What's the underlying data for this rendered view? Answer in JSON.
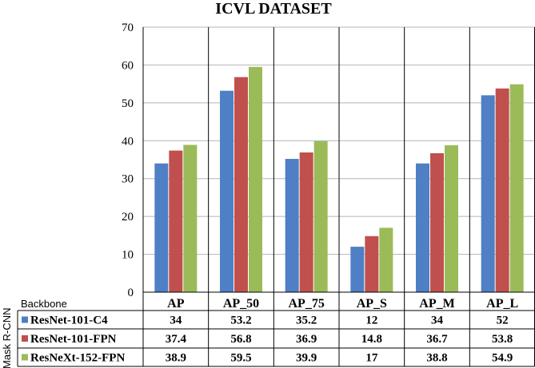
{
  "chart_data": {
    "type": "bar",
    "title": "ICVL DATASET",
    "categories": [
      "AP",
      "AP_50",
      "AP_75",
      "AP_S",
      "AP_M",
      "AP_L"
    ],
    "series": [
      {
        "name": "ResNet-101-C4",
        "color": "#4F7FC4",
        "values": [
          34,
          53.2,
          35.2,
          12,
          34,
          52
        ]
      },
      {
        "name": "ResNet-101-FPN",
        "color": "#C0504D",
        "values": [
          37.4,
          56.8,
          36.9,
          14.8,
          36.7,
          53.8
        ]
      },
      {
        "name": "ResNeXt-152-FPN",
        "color": "#9BBB59",
        "values": [
          38.9,
          59.5,
          39.9,
          17,
          38.8,
          54.9
        ]
      }
    ],
    "yticks": [
      0,
      10,
      20,
      30,
      40,
      50,
      60,
      70
    ],
    "ylim": [
      0,
      70
    ],
    "grid": true,
    "table_header": "Backbone",
    "row_group_label": "Mask R-CNN",
    "legend": "data-table"
  }
}
